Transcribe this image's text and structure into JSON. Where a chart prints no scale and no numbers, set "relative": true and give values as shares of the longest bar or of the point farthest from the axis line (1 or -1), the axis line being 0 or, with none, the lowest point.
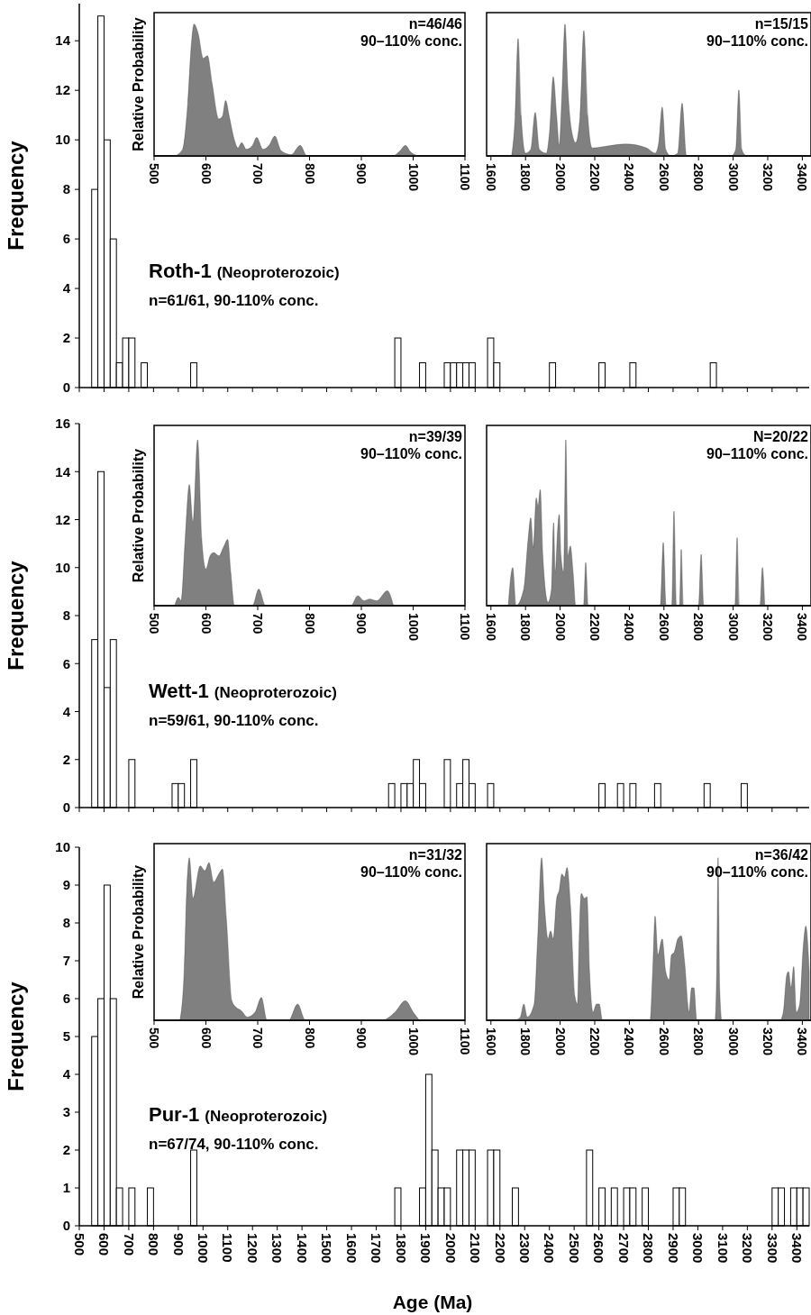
{
  "chart_data": [
    {
      "type": "histogram",
      "ylabel": "Frequency",
      "annotations": [
        "Roth-1",
        "(Neoproterozoic)",
        "n=61/61, 90-110% conc."
      ],
      "tick_labels": "y",
      "color": "#ffffff",
      "bins": [
        500,
        525,
        550,
        575,
        600,
        625,
        650,
        675,
        700,
        725,
        750,
        775,
        800,
        825,
        850,
        875,
        900,
        925,
        950,
        975,
        1000,
        1025,
        1050,
        1075,
        1100,
        1125,
        1150,
        1175,
        1200,
        1225,
        1250,
        1275,
        1300,
        1325,
        1350,
        1375,
        1400,
        1425,
        1450,
        1475,
        1500,
        1525,
        1550,
        1575,
        1600,
        1625,
        1650,
        1675,
        1700,
        1725,
        1750,
        1775,
        1800,
        1825,
        1850,
        1875,
        1900,
        1925,
        1950,
        1975,
        2000,
        2025,
        2050,
        2075,
        2100,
        2125,
        2150,
        2175,
        2200,
        2225,
        2250,
        2275,
        2300,
        2325,
        2350,
        2375,
        2400,
        2425,
        2450,
        2475,
        2500,
        2525,
        2550,
        2575,
        2600,
        2625,
        2650,
        2675,
        2700,
        2725,
        2750,
        2775,
        2800,
        2825,
        2850,
        2875,
        2900,
        2925,
        2950,
        2975,
        3000,
        3025,
        3050,
        3075,
        3100,
        3125,
        3150,
        3175,
        3200,
        3225,
        3250,
        3275,
        3300,
        3325,
        3350,
        3375,
        3400,
        3425,
        3450
      ],
      "values": [
        0,
        0,
        8,
        15,
        10,
        6,
        1,
        2,
        2,
        0,
        1,
        0,
        0,
        0,
        0,
        0,
        0,
        0,
        1,
        0,
        0,
        0,
        0,
        0,
        0,
        0,
        0,
        0,
        0,
        0,
        0,
        0,
        0,
        0,
        0,
        0,
        0,
        0,
        0,
        0,
        0,
        0,
        0,
        0,
        0,
        0,
        0,
        0,
        0,
        0,
        0,
        2,
        0,
        0,
        0,
        1,
        0,
        0,
        0,
        1,
        1,
        1,
        1,
        1,
        0,
        0,
        2,
        1,
        0,
        0,
        0,
        0,
        0,
        0,
        0,
        0,
        1,
        0,
        0,
        0,
        0,
        0,
        0,
        0,
        1,
        0,
        0,
        0,
        0,
        1,
        0,
        0,
        0,
        0,
        0,
        0,
        0,
        0,
        0,
        0,
        0,
        0,
        1,
        0,
        0,
        0,
        0,
        0,
        0,
        0,
        0,
        0,
        0,
        0,
        0,
        0,
        0,
        0
      ],
      "xlim": [
        500,
        3450
      ],
      "xticks": [
        500,
        600,
        700,
        800,
        900,
        1000,
        1100,
        1200,
        1300,
        1400,
        1500,
        1600,
        1700,
        1800,
        1900,
        2000,
        2100,
        2200,
        2300,
        2400,
        2500,
        2600,
        2700,
        2800,
        2900,
        3000,
        3100,
        3200,
        3300,
        3400
      ],
      "ylim": [
        0,
        15.5
      ],
      "yticks": [
        0,
        2,
        4,
        6,
        8,
        10,
        12,
        14
      ]
    },
    {
      "type": "area",
      "relative": true,
      "ylabel": "Relative Probability",
      "annotations": [
        "n=46/46",
        "90–110% conc."
      ],
      "xlim": [
        500,
        1100
      ],
      "xticks": [
        500,
        600,
        700,
        800,
        900,
        1000,
        1100
      ],
      "series": [
        {
          "color": "#808080",
          "x": [
            540,
            555,
            565,
            572,
            577,
            585,
            595,
            603,
            612,
            625,
            632,
            638,
            645,
            655,
            662,
            669,
            678,
            690,
            698,
            710,
            722,
            733,
            745,
            765,
            782,
            795,
            960,
            975,
            985,
            995,
            1010
          ],
          "values": [
            0,
            0.05,
            0.4,
            0.85,
            1.0,
            0.93,
            0.74,
            0.76,
            0.55,
            0.28,
            0.3,
            0.42,
            0.3,
            0.12,
            0.06,
            0.1,
            0.05,
            0.08,
            0.14,
            0.05,
            0.08,
            0.15,
            0.04,
            0.01,
            0.08,
            0,
            0,
            0.04,
            0.08,
            0.03,
            0
          ]
        }
      ]
    },
    {
      "type": "area",
      "relative": true,
      "annotations": [
        "n=15/15",
        "90–110% conc."
      ],
      "xlim": [
        1575,
        3450
      ],
      "xticks": [
        1600,
        1800,
        2000,
        2200,
        2400,
        2600,
        2800,
        3000,
        3200,
        3400
      ],
      "series": [
        {
          "color": "#808080",
          "x": [
            1720,
            1740,
            1757,
            1775,
            1800,
            1830,
            1856,
            1880,
            1920,
            1940,
            1960,
            1980,
            1995,
            2010,
            2028,
            2045,
            2065,
            2090,
            2115,
            2137,
            2160,
            2185,
            2250,
            2380,
            2500,
            2550,
            2570,
            2590,
            2610,
            2640,
            2680,
            2705,
            2730,
            2990,
            3015,
            3033,
            3050,
            3075
          ],
          "values": [
            0,
            0.3,
            0.89,
            0.3,
            0.02,
            0.05,
            0.33,
            0.05,
            0.02,
            0.2,
            0.6,
            0.3,
            0.08,
            0.45,
            1.0,
            0.5,
            0.2,
            0.1,
            0.3,
            0.95,
            0.3,
            0.06,
            0.07,
            0.09,
            0.06,
            0.02,
            0.1,
            0.37,
            0.05,
            0,
            0.02,
            0.4,
            0,
            0,
            0.05,
            0.5,
            0.05,
            0
          ]
        }
      ]
    },
    {
      "type": "histogram",
      "ylabel": "Frequency",
      "annotations": [
        "Wett-1",
        "(Neoproterozoic)",
        "n=59/61, 90-110% conc."
      ],
      "tick_labels": "y",
      "color": "#ffffff",
      "bins": [
        500,
        525,
        550,
        575,
        600,
        625,
        650,
        675,
        700,
        725,
        750,
        775,
        800,
        825,
        850,
        875,
        900,
        925,
        950,
        975,
        1000,
        1025,
        1050,
        1075,
        1100,
        1125,
        1150,
        1175,
        1200,
        1225,
        1250,
        1275,
        1300,
        1325,
        1350,
        1375,
        1400,
        1425,
        1450,
        1475,
        1500,
        1525,
        1550,
        1575,
        1600,
        1625,
        1650,
        1675,
        1700,
        1725,
        1750,
        1775,
        1800,
        1825,
        1850,
        1875,
        1900,
        1925,
        1950,
        1975,
        2000,
        2025,
        2050,
        2075,
        2100,
        2125,
        2150,
        2175,
        2200,
        2225,
        2250,
        2275,
        2300,
        2325,
        2350,
        2375,
        2400,
        2425,
        2450,
        2475,
        2500,
        2525,
        2550,
        2575,
        2600,
        2625,
        2650,
        2675,
        2700,
        2725,
        2750,
        2775,
        2800,
        2825,
        2850,
        2875,
        2900,
        2925,
        2950,
        2975,
        3000,
        3025,
        3050,
        3075,
        3100,
        3125,
        3150,
        3175,
        3200,
        3225,
        3250,
        3275,
        3300,
        3325,
        3350,
        3375,
        3400,
        3425,
        3450
      ],
      "values": [
        0,
        0,
        7,
        14,
        5,
        7,
        0,
        0,
        2,
        0,
        0,
        0,
        0,
        0,
        0,
        1,
        1,
        0,
        2,
        0,
        0,
        0,
        0,
        0,
        0,
        0,
        0,
        0,
        0,
        0,
        0,
        0,
        0,
        0,
        0,
        0,
        0,
        0,
        0,
        0,
        0,
        0,
        0,
        0,
        0,
        0,
        0,
        0,
        0,
        0,
        1,
        0,
        1,
        1,
        2,
        1,
        0,
        0,
        0,
        2,
        0,
        1,
        2,
        1,
        0,
        0,
        1,
        0,
        0,
        0,
        0,
        0,
        0,
        0,
        0,
        0,
        0,
        0,
        0,
        0,
        0,
        0,
        0,
        0,
        1,
        0,
        0,
        1,
        0,
        1,
        0,
        0,
        0,
        1,
        0,
        0,
        0,
        0,
        0,
        0,
        0,
        1,
        0,
        0,
        0,
        0,
        0,
        1,
        0,
        0,
        0,
        0,
        0,
        0,
        0,
        0,
        0,
        0
      ],
      "xlim": [
        500,
        3450
      ],
      "xticks": [
        500,
        600,
        700,
        800,
        900,
        1000,
        1100,
        1200,
        1300,
        1400,
        1500,
        1600,
        1700,
        1800,
        1900,
        2000,
        2100,
        2200,
        2300,
        2400,
        2500,
        2600,
        2700,
        2800,
        2900,
        3000,
        3100,
        3200,
        3300,
        3400
      ],
      "ylim": [
        0,
        16
      ],
      "yticks": [
        0,
        2,
        4,
        6,
        8,
        10,
        12,
        14,
        16
      ]
    },
    {
      "type": "area",
      "relative": true,
      "ylabel": "Relative Probability",
      "annotations": [
        "n=39/39",
        "90–110% conc."
      ],
      "xlim": [
        500,
        1100
      ],
      "xticks": [
        500,
        600,
        700,
        800,
        900,
        1000,
        1100
      ],
      "series": [
        {
          "color": "#808080",
          "x": [
            540,
            547,
            552,
            560,
            568,
            575,
            584,
            592,
            600,
            608,
            615,
            625,
            635,
            642,
            648,
            655,
            690,
            702,
            715,
            880,
            893,
            905,
            916,
            930,
            950,
            962
          ],
          "values": [
            0,
            0.05,
            0.03,
            0.4,
            0.73,
            0.5,
            1.0,
            0.4,
            0.22,
            0.3,
            0.32,
            0.3,
            0.36,
            0.4,
            0.2,
            0,
            0,
            0.1,
            0,
            0,
            0.06,
            0.03,
            0.04,
            0.03,
            0.09,
            0
          ]
        }
      ]
    },
    {
      "type": "area",
      "relative": true,
      "annotations": [
        "N=20/22",
        "90–110% conc."
      ],
      "xlim": [
        1575,
        3450
      ],
      "xticks": [
        1600,
        1800,
        2000,
        2200,
        2400,
        2600,
        2800,
        3000,
        3200,
        3400
      ],
      "series": [
        {
          "color": "#808080",
          "x": [
            1700,
            1726,
            1745,
            1790,
            1815,
            1830,
            1845,
            1862,
            1872,
            1885,
            1900,
            1930,
            1950,
            1962,
            1972,
            1985,
            1995,
            2005,
            2020,
            2033,
            2045,
            2059,
            2075,
            2090,
            2135,
            2148,
            2162,
            2580,
            2596,
            2612,
            2645,
            2658,
            2672,
            2690,
            2700,
            2712,
            2800,
            2815,
            2830,
            3010,
            3023,
            3036,
            3155,
            3169,
            3183
          ],
          "values": [
            0,
            0.23,
            0,
            0.1,
            0.4,
            0.53,
            0.35,
            0.65,
            0.6,
            0.7,
            0.3,
            0.02,
            0.1,
            0.5,
            0.2,
            0.45,
            0.55,
            0.3,
            0.2,
            1.0,
            0.3,
            0.36,
            0.2,
            0,
            0,
            0.26,
            0,
            0,
            0.38,
            0,
            0,
            0.57,
            0,
            0,
            0.34,
            0,
            0,
            0.31,
            0,
            0,
            0.41,
            0,
            0,
            0.23,
            0
          ]
        }
      ]
    },
    {
      "type": "histogram",
      "ylabel": "Frequency",
      "xlabel": "Age (Ma)",
      "annotations": [
        "Pur-1",
        "(Neoproterozoic)",
        "n=67/74, 90-110% conc."
      ],
      "color": "#ffffff",
      "bins": [
        500,
        525,
        550,
        575,
        600,
        625,
        650,
        675,
        700,
        725,
        750,
        775,
        800,
        825,
        850,
        875,
        900,
        925,
        950,
        975,
        1000,
        1025,
        1050,
        1075,
        1100,
        1125,
        1150,
        1175,
        1200,
        1225,
        1250,
        1275,
        1300,
        1325,
        1350,
        1375,
        1400,
        1425,
        1450,
        1475,
        1500,
        1525,
        1550,
        1575,
        1600,
        1625,
        1650,
        1675,
        1700,
        1725,
        1750,
        1775,
        1800,
        1825,
        1850,
        1875,
        1900,
        1925,
        1950,
        1975,
        2000,
        2025,
        2050,
        2075,
        2100,
        2125,
        2150,
        2175,
        2200,
        2225,
        2250,
        2275,
        2300,
        2325,
        2350,
        2375,
        2400,
        2425,
        2450,
        2475,
        2500,
        2525,
        2550,
        2575,
        2600,
        2625,
        2650,
        2675,
        2700,
        2725,
        2750,
        2775,
        2800,
        2825,
        2850,
        2875,
        2900,
        2925,
        2950,
        2975,
        3000,
        3025,
        3050,
        3075,
        3100,
        3125,
        3150,
        3175,
        3200,
        3225,
        3250,
        3275,
        3300,
        3325,
        3350,
        3375,
        3400,
        3425,
        3450
      ],
      "values": [
        0,
        0,
        5,
        6,
        9,
        6,
        1,
        0,
        1,
        0,
        0,
        1,
        0,
        0,
        0,
        0,
        0,
        0,
        2,
        0,
        0,
        0,
        0,
        0,
        0,
        0,
        0,
        0,
        0,
        0,
        0,
        0,
        0,
        0,
        0,
        0,
        0,
        0,
        0,
        0,
        0,
        0,
        0,
        0,
        0,
        0,
        0,
        0,
        0,
        0,
        0,
        1,
        0,
        0,
        0,
        1,
        4,
        2,
        1,
        1,
        0,
        2,
        2,
        2,
        0,
        0,
        2,
        2,
        0,
        0,
        1,
        0,
        0,
        0,
        0,
        0,
        0,
        0,
        0,
        0,
        0,
        0,
        2,
        0,
        1,
        0,
        1,
        0,
        1,
        1,
        0,
        1,
        0,
        0,
        0,
        0,
        1,
        1,
        0,
        0,
        0,
        0,
        0,
        0,
        0,
        0,
        0,
        0,
        0,
        0,
        0,
        0,
        1,
        1,
        0,
        1,
        1,
        1
      ],
      "xlim": [
        500,
        3450
      ],
      "xticks": [
        500,
        600,
        700,
        800,
        900,
        1000,
        1100,
        1200,
        1300,
        1400,
        1500,
        1600,
        1700,
        1800,
        1900,
        2000,
        2100,
        2200,
        2300,
        2400,
        2500,
        2600,
        2700,
        2800,
        2900,
        3000,
        3100,
        3200,
        3300,
        3400
      ],
      "ylim": [
        0,
        10
      ],
      "yticks": [
        0,
        1,
        2,
        3,
        4,
        5,
        6,
        7,
        8,
        9,
        10
      ]
    },
    {
      "type": "area",
      "relative": true,
      "ylabel": "Relative Probability",
      "annotations": [
        "n=31/32",
        "90–110% conc."
      ],
      "xlim": [
        500,
        1100
      ],
      "xticks": [
        500,
        600,
        700,
        800,
        900,
        1000,
        1100
      ],
      "series": [
        {
          "color": "#808080",
          "x": [
            550,
            558,
            563,
            568,
            575,
            589,
            598,
            606,
            615,
            625,
            632,
            640,
            650,
            658,
            668,
            680,
            695,
            707,
            718,
            760,
            777,
            792,
            940,
            965,
            985,
            1000,
            1012
          ],
          "values": [
            0,
            0.3,
            0.8,
            1.0,
            0.75,
            0.95,
            0.92,
            0.97,
            0.85,
            0.9,
            0.93,
            0.6,
            0.12,
            0.08,
            0.06,
            0.02,
            0.05,
            0.14,
            0,
            0,
            0.1,
            0,
            0,
            0.05,
            0.12,
            0.05,
            0
          ]
        }
      ]
    },
    {
      "type": "area",
      "relative": true,
      "annotations": [
        "n=36/42",
        "90–110% conc."
      ],
      "xlim": [
        1575,
        3450
      ],
      "xticks": [
        1600,
        1800,
        2000,
        2200,
        2400,
        2600,
        2800,
        3000,
        3200,
        3400
      ],
      "series": [
        {
          "color": "#808080",
          "x": [
            1740,
            1770,
            1790,
            1810,
            1850,
            1870,
            1893,
            1910,
            1930,
            1945,
            1960,
            1980,
            1995,
            2010,
            2025,
            2040,
            2060,
            2085,
            2100,
            2110,
            2122,
            2140,
            2155,
            2170,
            2190,
            2210,
            2226,
            2245,
            2520,
            2535,
            2549,
            2565,
            2590,
            2610,
            2630,
            2643,
            2660,
            2680,
            2700,
            2720,
            2745,
            2760,
            2773,
            2790,
            2895,
            2905,
            2913,
            2922,
            2935,
            3270,
            3290,
            3310,
            3320,
            3335,
            3350,
            3365,
            3385,
            3405,
            3420,
            3440
          ],
          "values": [
            0,
            0.02,
            0.1,
            0.02,
            0.1,
            0.5,
            1.0,
            0.7,
            0.5,
            0.55,
            0.5,
            0.75,
            0.8,
            0.9,
            0.88,
            0.94,
            0.7,
            0.15,
            0.1,
            0.5,
            0.78,
            0.75,
            0.76,
            0.3,
            0.05,
            0.1,
            0.1,
            0,
            0,
            0.3,
            0.64,
            0.4,
            0.5,
            0.3,
            0.25,
            0.4,
            0.42,
            0.5,
            0.52,
            0.35,
            0.05,
            0.2,
            0.2,
            0,
            0,
            0.3,
            1.0,
            0.2,
            0,
            0,
            0.05,
            0.28,
            0.3,
            0.2,
            0.33,
            0.05,
            0.1,
            0.45,
            0.58,
            0.3
          ]
        }
      ]
    }
  ]
}
